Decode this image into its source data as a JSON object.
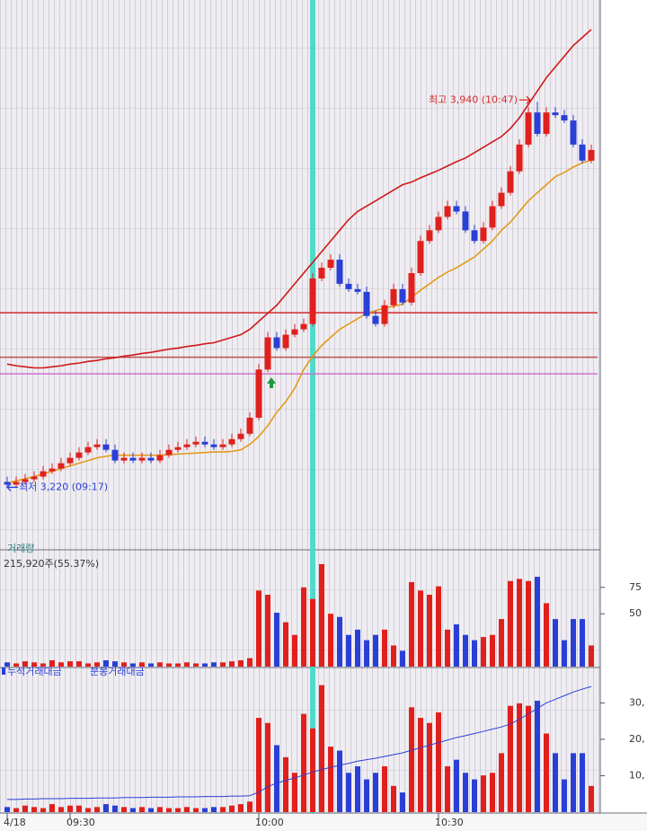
{
  "chart_data": [
    {
      "type": "candlestick",
      "categories": [
        "4/18",
        null,
        null,
        null,
        null,
        null,
        null,
        "09:30",
        null,
        null,
        null,
        null,
        null,
        null,
        null,
        null,
        null,
        null,
        null,
        null,
        null,
        null,
        null,
        null,
        null,
        null,
        null,
        null,
        "10:00",
        null,
        null,
        null,
        null,
        null,
        null,
        null,
        null,
        null,
        null,
        null,
        null,
        null,
        null,
        null,
        null,
        null,
        null,
        null,
        "10:30",
        null,
        null,
        null,
        null,
        null,
        null,
        null,
        null,
        null,
        null,
        null,
        null,
        null,
        null,
        null,
        null,
        null
      ],
      "open": [
        3230,
        3225,
        3230,
        3235,
        3240,
        3250,
        3255,
        3265,
        3275,
        3285,
        3295,
        3300,
        3290,
        3270,
        3275,
        3270,
        3275,
        3270,
        3280,
        3290,
        3295,
        3300,
        3305,
        3300,
        3295,
        3300,
        3310,
        3320,
        3350,
        3440,
        3500,
        3480,
        3505,
        3515,
        3525,
        3610,
        3630,
        3645,
        3600,
        3590,
        3585,
        3540,
        3525,
        3560,
        3590,
        3565,
        3620,
        3680,
        3700,
        3725,
        3745,
        3735,
        3700,
        3680,
        3705,
        3745,
        3770,
        3810,
        3860,
        3920,
        3880,
        3920,
        3915,
        3905,
        3860,
        3830
      ],
      "high": [
        3240,
        3240,
        3245,
        3250,
        3260,
        3265,
        3275,
        3285,
        3295,
        3305,
        3310,
        3310,
        3300,
        3285,
        3285,
        3285,
        3285,
        3290,
        3300,
        3305,
        3310,
        3315,
        3315,
        3310,
        3310,
        3320,
        3330,
        3360,
        3450,
        3510,
        3510,
        3515,
        3525,
        3535,
        3620,
        3640,
        3655,
        3655,
        3610,
        3600,
        3595,
        3550,
        3570,
        3600,
        3600,
        3630,
        3690,
        3710,
        3735,
        3755,
        3755,
        3745,
        3710,
        3715,
        3755,
        3780,
        3820,
        3870,
        3930,
        3940,
        3930,
        3930,
        3925,
        3915,
        3870,
        3860
      ],
      "low": [
        3220,
        3220,
        3225,
        3230,
        3235,
        3245,
        3250,
        3260,
        3270,
        3280,
        3290,
        3285,
        3265,
        3265,
        3265,
        3265,
        3265,
        3265,
        3275,
        3285,
        3290,
        3295,
        3295,
        3290,
        3290,
        3295,
        3305,
        3315,
        3345,
        3435,
        3475,
        3475,
        3500,
        3510,
        3520,
        3605,
        3625,
        3595,
        3585,
        3580,
        3535,
        3520,
        3520,
        3555,
        3560,
        3560,
        3615,
        3675,
        3695,
        3720,
        3730,
        3695,
        3675,
        3675,
        3700,
        3740,
        3765,
        3805,
        3855,
        3875,
        3875,
        3910,
        3900,
        3855,
        3825,
        3825
      ],
      "close": [
        3225,
        3230,
        3235,
        3240,
        3250,
        3255,
        3265,
        3275,
        3285,
        3295,
        3300,
        3290,
        3270,
        3275,
        3270,
        3275,
        3270,
        3280,
        3290,
        3295,
        3300,
        3305,
        3300,
        3295,
        3300,
        3310,
        3320,
        3350,
        3440,
        3500,
        3480,
        3505,
        3515,
        3525,
        3610,
        3630,
        3645,
        3600,
        3590,
        3585,
        3540,
        3525,
        3560,
        3590,
        3565,
        3620,
        3680,
        3700,
        3725,
        3745,
        3735,
        3700,
        3680,
        3705,
        3745,
        3770,
        3810,
        3860,
        3920,
        3880,
        3920,
        3915,
        3905,
        3860,
        3830,
        3850
      ],
      "up_color": "#e0201c",
      "down_color": "#2a3fd6",
      "lines": [
        {
          "color": "#d01818",
          "values": [
            3450,
            3447,
            3445,
            3443,
            3443,
            3445,
            3447,
            3450,
            3452,
            3455,
            3457,
            3460,
            3462,
            3465,
            3467,
            3470,
            3472,
            3475,
            3478,
            3480,
            3483,
            3485,
            3488,
            3490,
            3495,
            3500,
            3505,
            3515,
            3530,
            3545,
            3560,
            3580,
            3600,
            3620,
            3640,
            3660,
            3680,
            3700,
            3720,
            3735,
            3745,
            3755,
            3765,
            3775,
            3785,
            3790,
            3798,
            3805,
            3812,
            3820,
            3828,
            3835,
            3845,
            3855,
            3865,
            3875,
            3890,
            3910,
            3935,
            3960,
            3985,
            4005,
            4025,
            4045,
            4060,
            4075
          ]
        },
        {
          "color": "#e39a1a",
          "values": [
            3228,
            3232,
            3236,
            3240,
            3245,
            3250,
            3255,
            3260,
            3265,
            3270,
            3275,
            3278,
            3280,
            3280,
            3280,
            3280,
            3280,
            3280,
            3281,
            3282,
            3283,
            3284,
            3285,
            3286,
            3286,
            3287,
            3290,
            3300,
            3315,
            3335,
            3360,
            3380,
            3405,
            3440,
            3465,
            3485,
            3500,
            3515,
            3525,
            3535,
            3545,
            3550,
            3555,
            3558,
            3562,
            3575,
            3588,
            3600,
            3612,
            3622,
            3630,
            3640,
            3650,
            3665,
            3680,
            3700,
            3715,
            3735,
            3755,
            3770,
            3785,
            3800,
            3808,
            3818,
            3826,
            3831
          ]
        }
      ],
      "hlines": [
        {
          "value": 3546,
          "color": "#d42a2a"
        },
        {
          "value": 3463,
          "color": "#c0504d"
        },
        {
          "value": 3432,
          "color": "#d070d0"
        }
      ],
      "annotations": [
        {
          "text": "최고 3,940 (10:47)",
          "value": 3940,
          "color": "#d42a2a"
        },
        {
          "text": "최저 3,220 (09:17)",
          "value": 3220,
          "color": "#2a3fd6"
        }
      ],
      "ylim": [
        3110,
        4130
      ]
    },
    {
      "type": "bar",
      "title": "거래량",
      "subtitle": "215,920주(55.37%)",
      "values": [
        4,
        3,
        5,
        4,
        3,
        6,
        4,
        5,
        5,
        3,
        4,
        6,
        5,
        4,
        3,
        4,
        3,
        4,
        3,
        3,
        4,
        3,
        3,
        4,
        4,
        5,
        6,
        8,
        72,
        68,
        51,
        42,
        30,
        75,
        64,
        97,
        50,
        47,
        30,
        35,
        25,
        30,
        35,
        20,
        15,
        80,
        72,
        68,
        76,
        35,
        40,
        30,
        25,
        28,
        30,
        45,
        81,
        83,
        81,
        85,
        60,
        45,
        25,
        45,
        45,
        20
      ],
      "ylim": [
        0,
        108
      ],
      "yticks": [
        50,
        75
      ]
    },
    {
      "type": "bar_line",
      "series": [
        {
          "name": "누적거래대금",
          "type": "line",
          "color": "#2a3fd6",
          "values": [
            3.5,
            3.5,
            3.6,
            3.6,
            3.7,
            3.7,
            3.7,
            3.8,
            3.8,
            3.8,
            3.9,
            3.9,
            3.9,
            4.0,
            4.0,
            4.0,
            4.1,
            4.1,
            4.1,
            4.2,
            4.2,
            4.2,
            4.3,
            4.3,
            4.3,
            4.4,
            4.4,
            4.5,
            5.5,
            7,
            8,
            8.7,
            9.4,
            10.2,
            11,
            11.7,
            12.3,
            12.9,
            13.4,
            14,
            14.4,
            14.8,
            15.3,
            15.8,
            16.3,
            17,
            17.7,
            18.4,
            19.1,
            19.8,
            20.5,
            21,
            21.6,
            22.2,
            22.8,
            23.4,
            24.2,
            25.5,
            27,
            28.5,
            30,
            31,
            32,
            33,
            33.8,
            34.5
          ]
        },
        {
          "name": "분봉거래대금",
          "type": "bar",
          "color": "#888888",
          "values": [
            1.4,
            1.1,
            1.8,
            1.4,
            1.1,
            2.2,
            1.4,
            1.8,
            1.8,
            1.1,
            1.4,
            2.2,
            1.8,
            1.4,
            1.1,
            1.4,
            1.1,
            1.4,
            1.1,
            1.1,
            1.4,
            1.1,
            1.1,
            1.4,
            1.4,
            1.8,
            2.2,
            2.9,
            25.9,
            24.5,
            18.4,
            15.1,
            10.8,
            27,
            23,
            34.9,
            18,
            16.9,
            10.8,
            12.6,
            9,
            10.8,
            12.6,
            7.2,
            5.4,
            28.8,
            25.9,
            24.5,
            27.4,
            12.6,
            14.4,
            10.8,
            9,
            10.1,
            10.8,
            16.2,
            29.2,
            29.9,
            29.2,
            30.6,
            21.6,
            16.2,
            9,
            16.2,
            16.2,
            7.2
          ]
        }
      ],
      "ylim": [
        0,
        39
      ],
      "yticks": [
        {
          "value": 10,
          "label": "10,"
        },
        {
          "value": 20,
          "label": "20,"
        },
        {
          "value": 30,
          "label": "30,"
        }
      ]
    }
  ]
}
